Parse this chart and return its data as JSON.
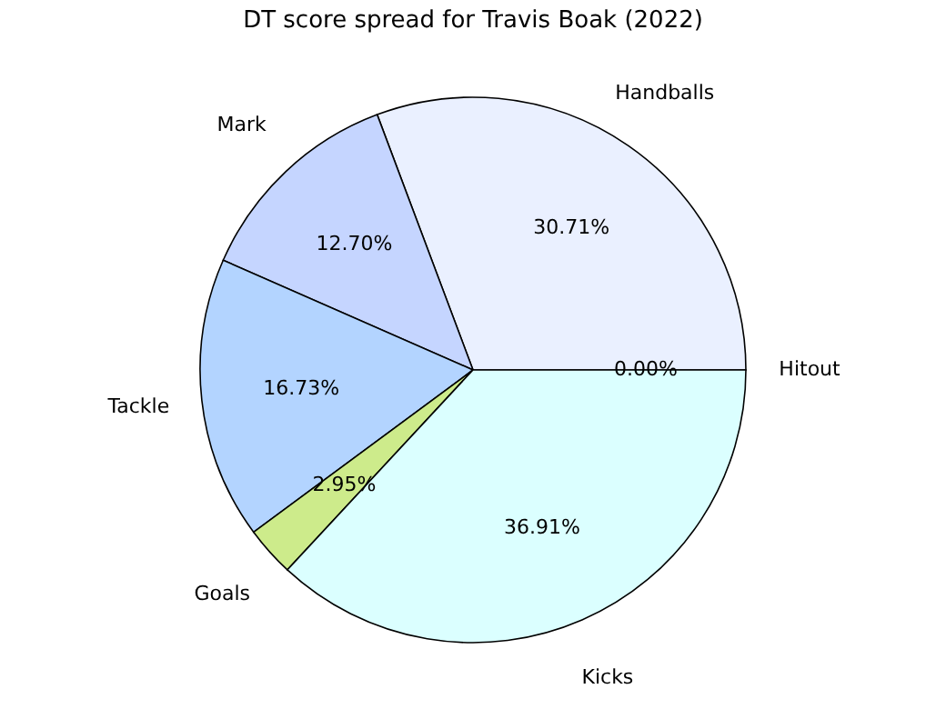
{
  "chart_data": {
    "type": "pie",
    "title": "DT score spread for Travis Boak (2022)",
    "categories": [
      "Hitout",
      "Handballs",
      "Mark",
      "Tackle",
      "Goals",
      "Kicks"
    ],
    "values": [
      0.0,
      30.71,
      12.7,
      16.73,
      2.95,
      36.91
    ],
    "value_labels": [
      "0.00%",
      "30.71%",
      "12.70%",
      "16.73%",
      "2.95%",
      "36.91%"
    ],
    "colors": [
      "#f0f0f0",
      "#eaf0ff",
      "#c5d5ff",
      "#b3d4ff",
      "#cdeb8b",
      "#dbffff"
    ],
    "legend": false
  }
}
